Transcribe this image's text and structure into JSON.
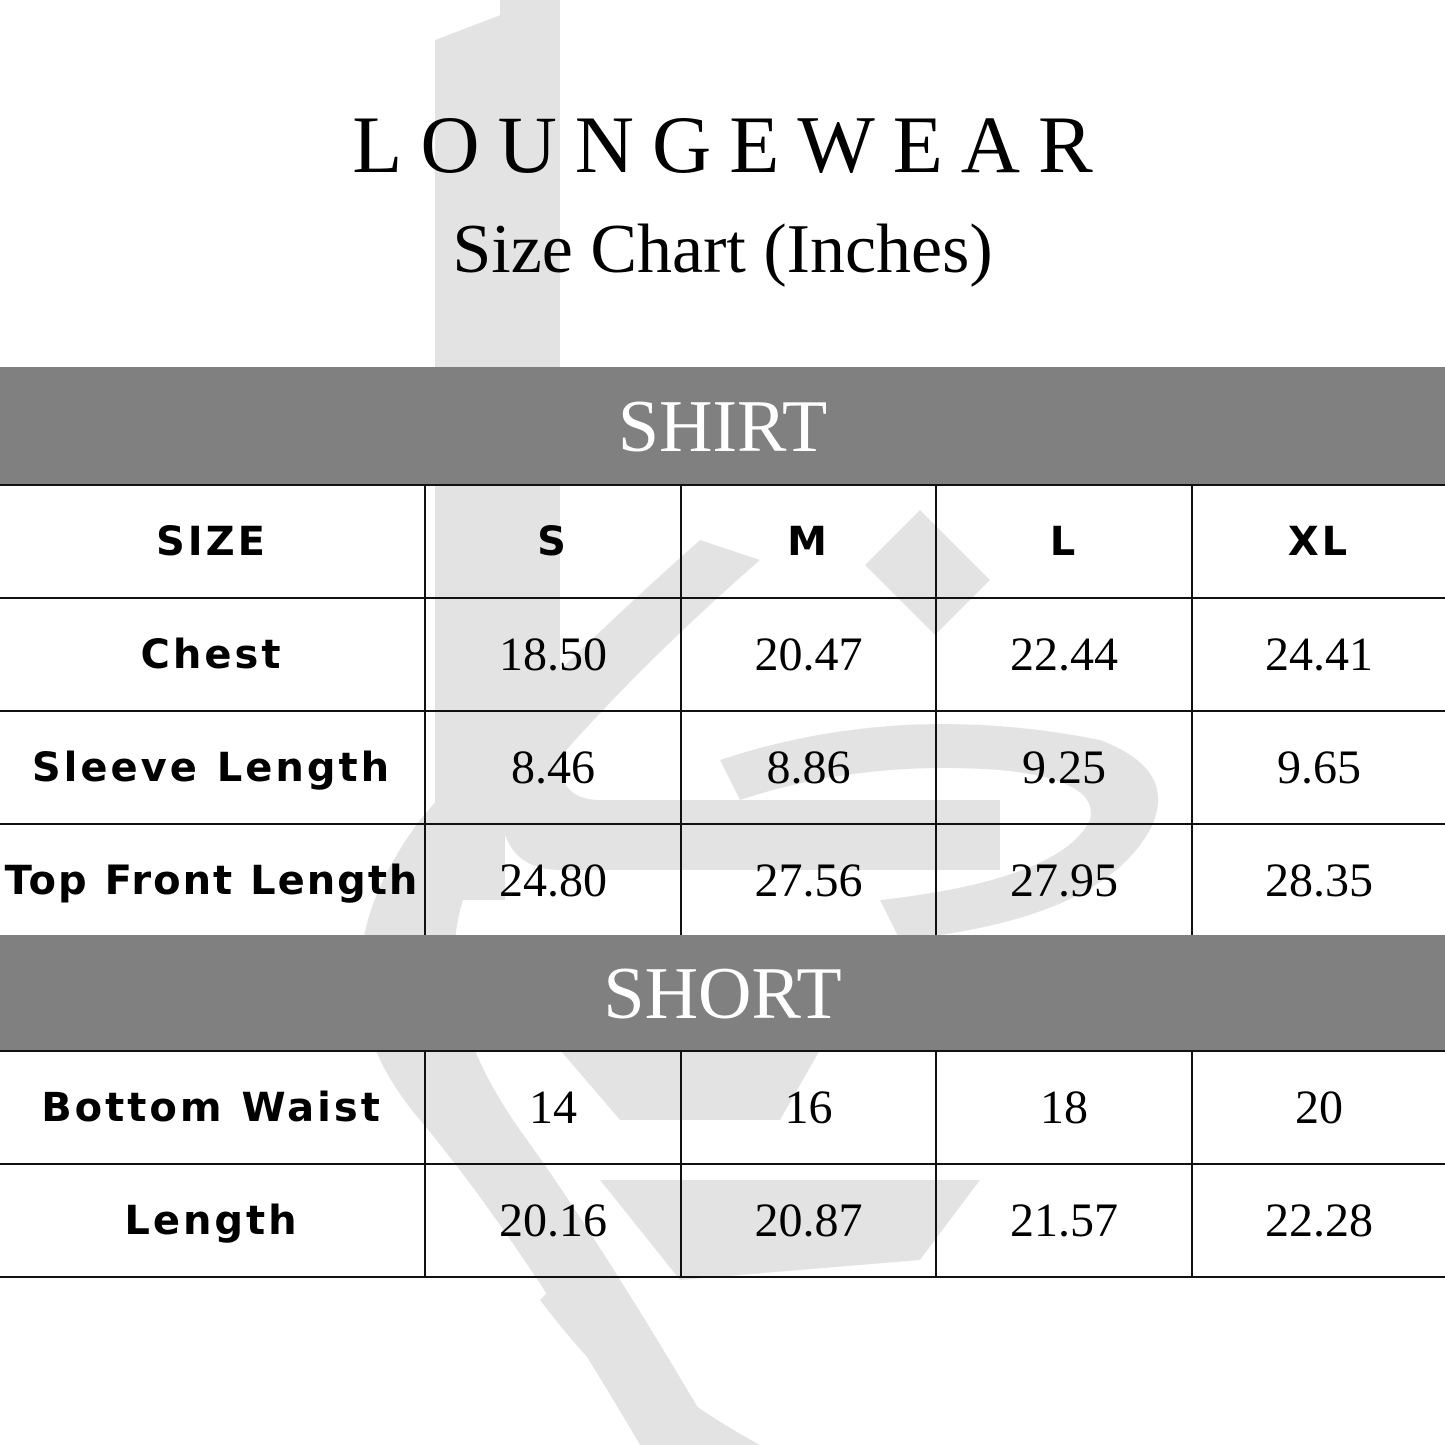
{
  "title": "LOUNGEWEAR",
  "subtitle": "Size Chart  (Inches)",
  "watermark_color": "#e3e3e3",
  "band_color": "#808080",
  "shirt": {
    "heading": "SHIRT",
    "header": [
      "SIZE",
      "S",
      "M",
      "L",
      "XL"
    ],
    "rows": [
      {
        "label": "Chest",
        "values": [
          "18.50",
          "20.47",
          "22.44",
          "24.41"
        ]
      },
      {
        "label": "Sleeve Length",
        "values": [
          "8.46",
          "8.86",
          "9.25",
          "9.65"
        ]
      },
      {
        "label": "Top Front Length",
        "values": [
          "24.80",
          "27.56",
          "27.95",
          "28.35"
        ]
      }
    ]
  },
  "short": {
    "heading": "SHORT",
    "rows": [
      {
        "label": "Bottom Waist",
        "values": [
          "14",
          "16",
          "18",
          "20"
        ]
      },
      {
        "label": "Length",
        "values": [
          "20.16",
          "20.87",
          "21.57",
          "22.28"
        ]
      }
    ]
  }
}
